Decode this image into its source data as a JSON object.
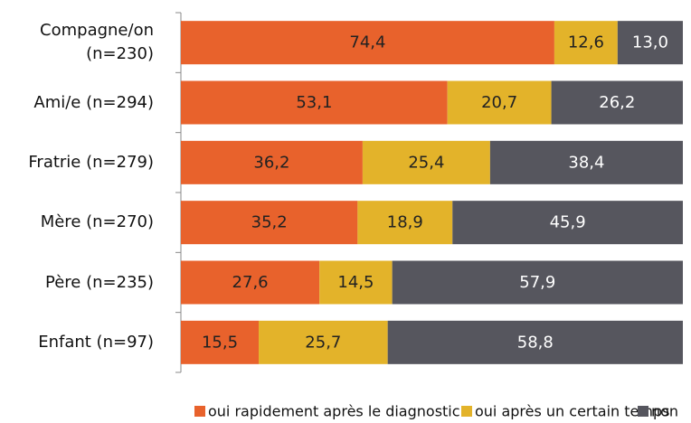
{
  "chart_data": {
    "type": "stacked_barh",
    "categories": [
      "Compagne/on\n(n=230)",
      "Ami/e (n=294)",
      "Fratrie (n=279)",
      "Mère (n=270)",
      "Père (n=235)",
      "Enfant (n=97)"
    ],
    "series": [
      {
        "name": "oui rapidement après le diagnostic",
        "color": "#e8622c",
        "values": [
          74.4,
          53.1,
          36.2,
          35.2,
          27.6,
          15.5
        ],
        "value_labels": [
          "74,4",
          "53,1",
          "36,2",
          "35,2",
          "27,6",
          "15,5"
        ]
      },
      {
        "name": "oui après un certain temps",
        "color": "#e3b32a",
        "values": [
          12.6,
          20.7,
          25.4,
          18.9,
          14.5,
          25.7
        ],
        "value_labels": [
          "12,6",
          "20,7",
          "25,4",
          "18,9",
          "14,5",
          "25,7"
        ]
      },
      {
        "name": "non",
        "color": "#56565e",
        "values": [
          13.0,
          26.2,
          38.4,
          45.9,
          57.9,
          58.8
        ],
        "value_labels": [
          "13,0",
          "26,2",
          "38,4",
          "45,9",
          "57,9",
          "58,8"
        ]
      }
    ],
    "xlim": [
      0,
      100
    ],
    "legend": "bottom"
  }
}
